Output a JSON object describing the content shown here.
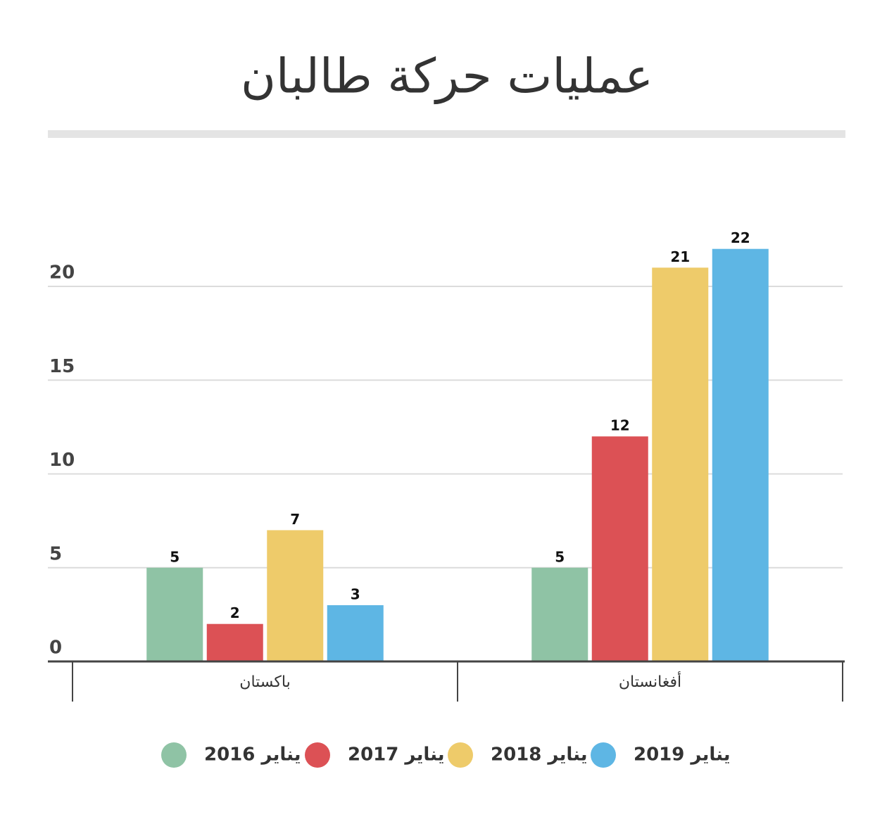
{
  "chart_data": {
    "type": "bar",
    "title": "عمليات حركة طالبان",
    "categories": [
      "باكستان",
      "أفغانستان"
    ],
    "series": [
      {
        "name": "يناير 2016",
        "color": "#8fc3a5",
        "values": [
          5,
          5
        ]
      },
      {
        "name": "يناير 2017",
        "color": "#dc5155",
        "values": [
          2,
          12
        ]
      },
      {
        "name": "يناير 2018",
        "color": "#eecb6a",
        "values": [
          7,
          21
        ]
      },
      {
        "name": "يناير 2019",
        "color": "#5eb6e4",
        "values": [
          3,
          22
        ]
      }
    ],
    "ylim": [
      0,
      22
    ],
    "yticks": [
      0,
      5,
      10,
      15,
      20
    ],
    "grid": true,
    "legend": "bottom"
  }
}
